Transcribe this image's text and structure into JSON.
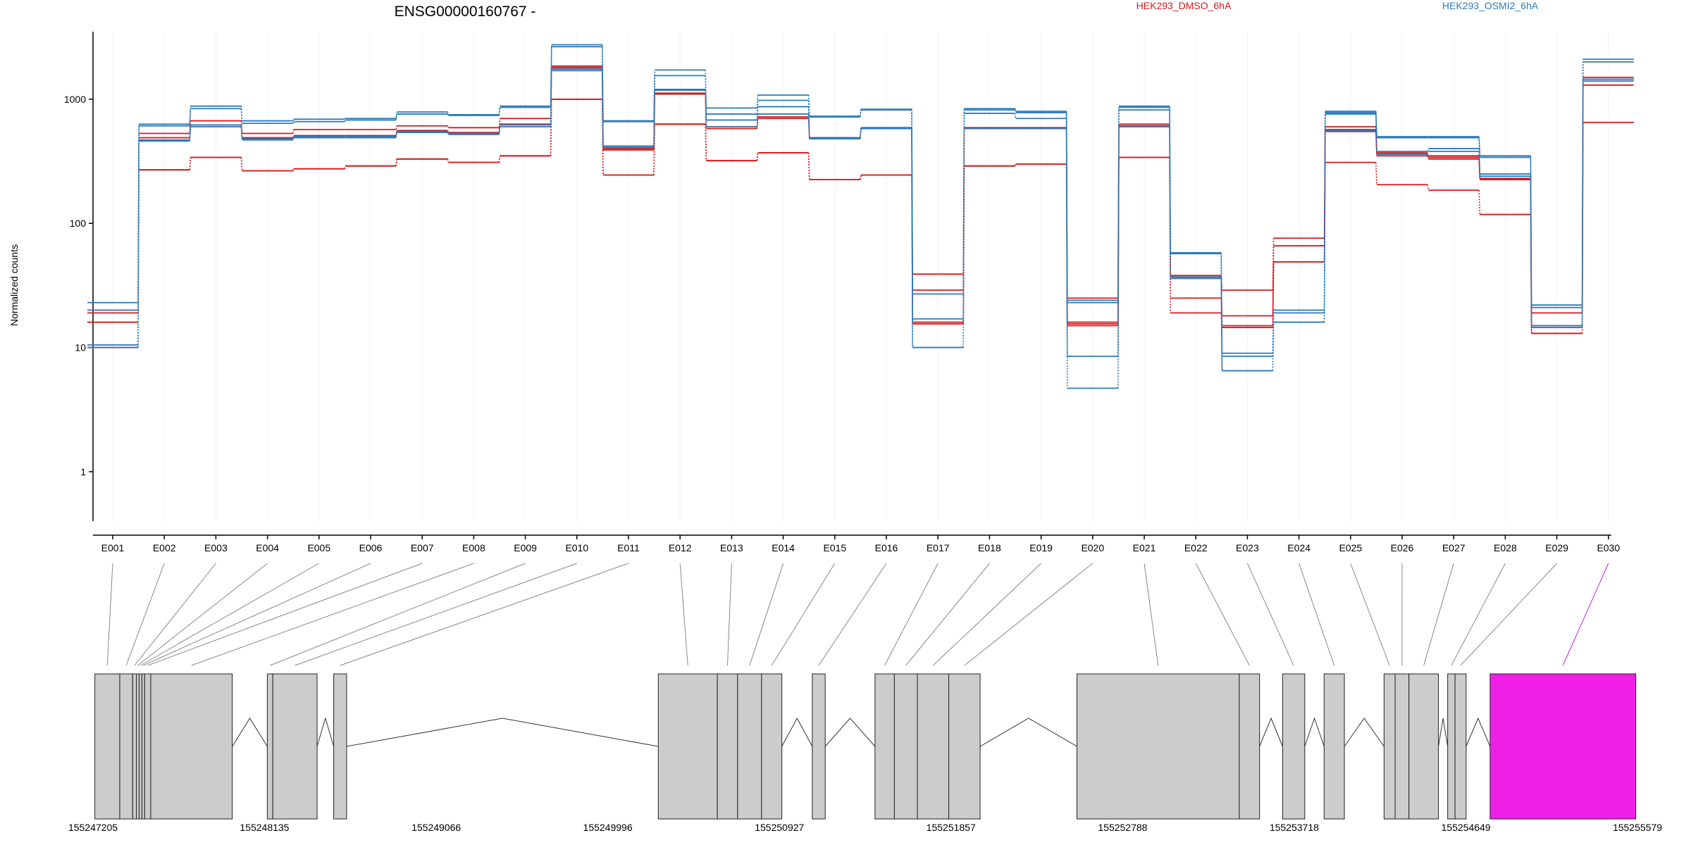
{
  "chart_data": {
    "type": "line",
    "title": "ENSG00000160767 -",
    "ylabel": "Normalized counts",
    "yscale": "log",
    "ylim": [
      0.4,
      3500
    ],
    "yticks": [
      "1",
      "10",
      "100",
      "1000"
    ],
    "ytick_values": [
      1,
      10,
      100,
      1000
    ],
    "legend_placement": "top",
    "colors": {
      "DMSO": "#d7191c",
      "OSMI2": "#2b7bba",
      "exon": "#cccccc",
      "highlight": "#f01fe6",
      "grid": "#f0f0f0"
    },
    "categories": [
      "E001",
      "E002",
      "E003",
      "E004",
      "E005",
      "E006",
      "E007",
      "E008",
      "E009",
      "E010",
      "E011",
      "E012",
      "E013",
      "E014",
      "E015",
      "E016",
      "E017",
      "E018",
      "E019",
      "E020",
      "E021",
      "E022",
      "E023",
      "E024",
      "E025",
      "E026",
      "E027",
      "E028",
      "E029",
      "E030"
    ],
    "highlight_exon": "E030",
    "series": [
      {
        "name": "HEK293_DMSO_6hA",
        "group": "DMSO",
        "values": [
          16,
          530,
          670,
          530,
          570,
          570,
          610,
          590,
          700,
          1850,
          400,
          1120,
          600,
          720,
          490,
          590,
          39,
          590,
          590,
          25,
          630,
          38,
          29,
          76,
          600,
          370,
          350,
          230,
          19,
          1500
        ]
      },
      {
        "name": "",
        "group": "DMSO",
        "values": [
          19,
          490,
          620,
          490,
          510,
          510,
          560,
          540,
          630,
          1800,
          390,
          1100,
          580,
          700,
          480,
          580,
          29,
          580,
          580,
          16,
          610,
          37,
          18,
          66,
          570,
          360,
          340,
          230,
          15,
          1450
        ]
      },
      {
        "name": "",
        "group": "DMSO",
        "values": [
          10,
          270,
          340,
          265,
          275,
          290,
          330,
          310,
          350,
          1000,
          245,
          630,
          320,
          370,
          225,
          245,
          16,
          290,
          300,
          15.5,
          340,
          25,
          15,
          49,
          550,
          350,
          330,
          225,
          13,
          1300
        ]
      },
      {
        "name": "",
        "group": "DMSO",
        "values": [
          10,
          270,
          340,
          265,
          275,
          290,
          330,
          310,
          350,
          1000,
          245,
          630,
          320,
          370,
          225,
          245,
          15.5,
          290,
          300,
          15,
          340,
          19,
          14.5,
          49,
          310,
          205,
          185,
          118,
          13,
          650
        ]
      },
      {
        "name": "HEK293_OSMI2_6hA",
        "group": "OSMI2",
        "values": [
          23,
          630,
          880,
          670,
          690,
          700,
          790,
          750,
          880,
          2750,
          670,
          1720,
          850,
          1080,
          730,
          830,
          17,
          840,
          800,
          24,
          880,
          58,
          9,
          20,
          800,
          500,
          500,
          350,
          22,
          2100
        ]
      },
      {
        "name": "",
        "group": "OSMI2",
        "values": [
          20,
          610,
          840,
          640,
          660,
          680,
          760,
          740,
          860,
          2650,
          660,
          1550,
          760,
          980,
          720,
          820,
          27,
          820,
          780,
          23,
          860,
          57,
          8.5,
          19,
          780,
          490,
          490,
          340,
          21,
          2000
        ]
      },
      {
        "name": "",
        "group": "OSMI2",
        "values": [
          10.5,
          470,
          620,
          480,
          500,
          500,
          550,
          530,
          620,
          1750,
          420,
          1200,
          680,
          870,
          490,
          590,
          10,
          770,
          700,
          8.5,
          820,
          37,
          6.5,
          16,
          760,
          380,
          400,
          250,
          15,
          1450
        ]
      },
      {
        "name": "",
        "group": "OSMI2",
        "values": [
          10,
          460,
          600,
          470,
          490,
          490,
          540,
          520,
          600,
          1700,
          410,
          1180,
          600,
          760,
          480,
          580,
          10,
          580,
          580,
          4.7,
          600,
          36,
          6.5,
          16,
          560,
          360,
          380,
          240,
          14.5,
          1400
        ]
      }
    ],
    "genome_ticks": [
      "155247205",
      "155248135",
      "155249066",
      "155249996",
      "155250927",
      "155251857",
      "155252788",
      "155253718",
      "155254649",
      "155255579"
    ],
    "genome_tick_values": [
      155247205,
      155248135,
      155249066,
      155249996,
      155250927,
      155251857,
      155252788,
      155253718,
      155254649,
      155255579
    ],
    "exons": [
      {
        "id": "E001",
        "start": 155247215,
        "end": 155247350
      },
      {
        "id": "E002",
        "start": 155247350,
        "end": 155247420
      },
      {
        "id": "E003",
        "start": 155247420,
        "end": 155247440
      },
      {
        "id": "E004",
        "start": 155247440,
        "end": 155247455
      },
      {
        "id": "E005",
        "start": 155247455,
        "end": 155247470
      },
      {
        "id": "E006",
        "start": 155247470,
        "end": 155247485
      },
      {
        "id": "E007",
        "start": 155247485,
        "end": 155247518
      },
      {
        "id": "E008",
        "start": 155247518,
        "end": 155247960
      },
      {
        "id": "E009",
        "start": 155248150,
        "end": 155248180
      },
      {
        "id": "E010",
        "start": 155248180,
        "end": 155248420
      },
      {
        "id": "E011",
        "start": 155248510,
        "end": 155248580
      },
      {
        "id": "E012",
        "start": 155250270,
        "end": 155250590
      },
      {
        "id": "E013",
        "start": 155250590,
        "end": 155250700
      },
      {
        "id": "E014",
        "start": 155250700,
        "end": 155250830
      },
      {
        "id": "E015",
        "start": 155250830,
        "end": 155250940
      },
      {
        "id": "E016",
        "start": 155251105,
        "end": 155251175
      },
      {
        "id": "E017",
        "start": 155251445,
        "end": 155251550
      },
      {
        "id": "E018",
        "start": 155251550,
        "end": 155251675
      },
      {
        "id": "E019",
        "start": 155251675,
        "end": 155251845
      },
      {
        "id": "E020",
        "start": 155251845,
        "end": 155252015
      },
      {
        "id": "E021",
        "start": 155252540,
        "end": 155253420
      },
      {
        "id": "E022",
        "start": 155253420,
        "end": 155253530
      },
      {
        "id": "E023",
        "start": 155253655,
        "end": 155253775
      },
      {
        "id": "E024",
        "start": 155253880,
        "end": 155253990
      },
      {
        "id": "E025",
        "start": 155254205,
        "end": 155254265
      },
      {
        "id": "E026",
        "start": 155254265,
        "end": 155254340
      },
      {
        "id": "E027",
        "start": 155254340,
        "end": 155254500
      },
      {
        "id": "E028",
        "start": 155254550,
        "end": 155254590
      },
      {
        "id": "E029",
        "start": 155254590,
        "end": 155254650
      },
      {
        "id": "E030",
        "start": 155254780,
        "end": 155255570
      }
    ]
  }
}
